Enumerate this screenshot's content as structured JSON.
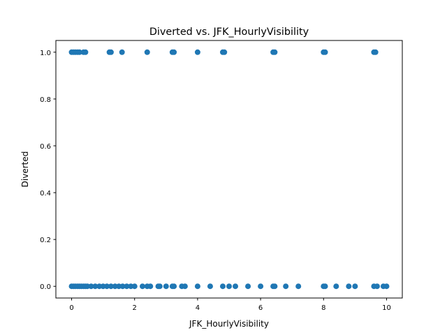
{
  "chart_data": {
    "type": "scatter",
    "title": "Diverted vs. JFK_HourlyVisibility",
    "xlabel": "JFK_HourlyVisibility",
    "ylabel": "Diverted",
    "xlim": [
      -0.5,
      10.5
    ],
    "ylim": [
      -0.05,
      1.05
    ],
    "xticks": [
      0,
      2,
      4,
      6,
      8,
      10
    ],
    "xtick_labels": [
      "0",
      "2",
      "4",
      "6",
      "8",
      "10"
    ],
    "yticks": [
      0.0,
      0.2,
      0.4,
      0.6,
      0.8,
      1.0
    ],
    "ytick_labels": [
      "0.0",
      "0.2",
      "0.4",
      "0.6",
      "0.8",
      "1.0"
    ],
    "grid": false,
    "marker_color": "#1f77b4",
    "points": [
      {
        "x": 0.0,
        "y": 1
      },
      {
        "x": 0.06,
        "y": 1
      },
      {
        "x": 0.12,
        "y": 1
      },
      {
        "x": 0.19,
        "y": 1
      },
      {
        "x": 0.25,
        "y": 1
      },
      {
        "x": 0.38,
        "y": 1
      },
      {
        "x": 0.44,
        "y": 1
      },
      {
        "x": 1.2,
        "y": 1
      },
      {
        "x": 1.25,
        "y": 1
      },
      {
        "x": 1.6,
        "y": 1
      },
      {
        "x": 2.4,
        "y": 1
      },
      {
        "x": 3.2,
        "y": 1
      },
      {
        "x": 3.25,
        "y": 1
      },
      {
        "x": 4.0,
        "y": 1
      },
      {
        "x": 4.8,
        "y": 1
      },
      {
        "x": 4.85,
        "y": 1
      },
      {
        "x": 6.4,
        "y": 1
      },
      {
        "x": 6.45,
        "y": 1
      },
      {
        "x": 8.0,
        "y": 1
      },
      {
        "x": 8.05,
        "y": 1
      },
      {
        "x": 9.6,
        "y": 1
      },
      {
        "x": 9.65,
        "y": 1
      },
      {
        "x": 0.0,
        "y": 0
      },
      {
        "x": 0.06,
        "y": 0
      },
      {
        "x": 0.12,
        "y": 0
      },
      {
        "x": 0.19,
        "y": 0
      },
      {
        "x": 0.25,
        "y": 0
      },
      {
        "x": 0.31,
        "y": 0
      },
      {
        "x": 0.38,
        "y": 0
      },
      {
        "x": 0.44,
        "y": 0
      },
      {
        "x": 0.5,
        "y": 0
      },
      {
        "x": 0.62,
        "y": 0
      },
      {
        "x": 0.75,
        "y": 0
      },
      {
        "x": 0.88,
        "y": 0
      },
      {
        "x": 1.0,
        "y": 0
      },
      {
        "x": 1.12,
        "y": 0
      },
      {
        "x": 1.25,
        "y": 0
      },
      {
        "x": 1.38,
        "y": 0
      },
      {
        "x": 1.5,
        "y": 0
      },
      {
        "x": 1.62,
        "y": 0
      },
      {
        "x": 1.75,
        "y": 0
      },
      {
        "x": 1.88,
        "y": 0
      },
      {
        "x": 2.0,
        "y": 0
      },
      {
        "x": 2.25,
        "y": 0
      },
      {
        "x": 2.4,
        "y": 0
      },
      {
        "x": 2.5,
        "y": 0
      },
      {
        "x": 2.75,
        "y": 0
      },
      {
        "x": 2.8,
        "y": 0
      },
      {
        "x": 3.0,
        "y": 0
      },
      {
        "x": 3.2,
        "y": 0
      },
      {
        "x": 3.25,
        "y": 0
      },
      {
        "x": 3.5,
        "y": 0
      },
      {
        "x": 3.6,
        "y": 0
      },
      {
        "x": 4.0,
        "y": 0
      },
      {
        "x": 4.4,
        "y": 0
      },
      {
        "x": 4.8,
        "y": 0
      },
      {
        "x": 5.0,
        "y": 0
      },
      {
        "x": 5.2,
        "y": 0
      },
      {
        "x": 5.6,
        "y": 0
      },
      {
        "x": 6.0,
        "y": 0
      },
      {
        "x": 6.4,
        "y": 0
      },
      {
        "x": 6.45,
        "y": 0
      },
      {
        "x": 6.8,
        "y": 0
      },
      {
        "x": 7.2,
        "y": 0
      },
      {
        "x": 8.0,
        "y": 0
      },
      {
        "x": 8.05,
        "y": 0
      },
      {
        "x": 8.4,
        "y": 0
      },
      {
        "x": 8.8,
        "y": 0
      },
      {
        "x": 9.0,
        "y": 0
      },
      {
        "x": 9.6,
        "y": 0
      },
      {
        "x": 9.7,
        "y": 0
      },
      {
        "x": 9.9,
        "y": 0
      },
      {
        "x": 10.0,
        "y": 0
      }
    ]
  }
}
